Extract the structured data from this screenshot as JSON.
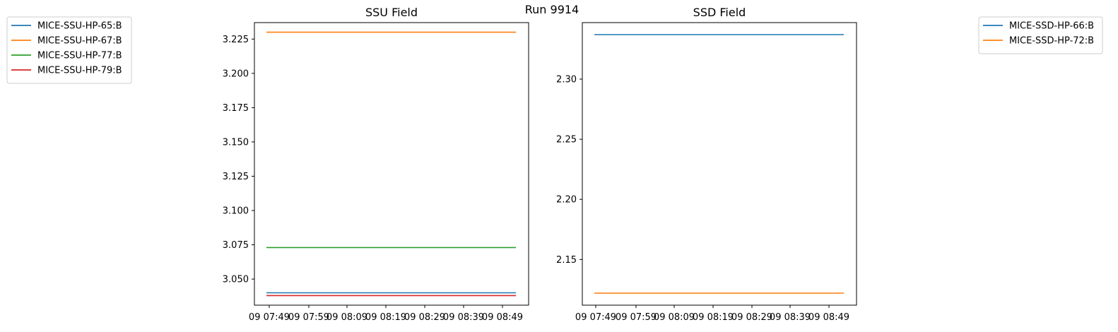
{
  "figure": {
    "suptitle": "Run 9914"
  },
  "chart_data": [
    {
      "type": "line",
      "title": "SSU Field",
      "xlabel": "",
      "ylabel": "",
      "x": [
        "09 07:49",
        "09 07:59",
        "09 08:09",
        "09 08:19",
        "09 08:29",
        "09 08:39",
        "09 08:49"
      ],
      "ylim": [
        3.031,
        3.237
      ],
      "yticks": [
        3.05,
        3.075,
        3.1,
        3.125,
        3.15,
        3.175,
        3.2,
        3.225
      ],
      "ytick_labels": [
        "3.050",
        "3.075",
        "3.100",
        "3.125",
        "3.150",
        "3.175",
        "3.200",
        "3.225"
      ],
      "legend_position": "upper-left, outside plot",
      "series": [
        {
          "name": "MICE-SSU-HP-65:B",
          "color": "#1f77b4",
          "values": [
            3.04,
            3.04,
            3.04,
            3.04,
            3.04,
            3.04,
            3.04
          ]
        },
        {
          "name": "MICE-SSU-HP-67:B",
          "color": "#ff7f0e",
          "values": [
            3.23,
            3.23,
            3.23,
            3.23,
            3.23,
            3.23,
            3.23
          ]
        },
        {
          "name": "MICE-SSU-HP-77:B",
          "color": "#2ca02c",
          "values": [
            3.073,
            3.073,
            3.073,
            3.073,
            3.073,
            3.073,
            3.073
          ]
        },
        {
          "name": "MICE-SSU-HP-79:B",
          "color": "#d62728",
          "values": [
            3.038,
            3.038,
            3.038,
            3.038,
            3.038,
            3.038,
            3.038
          ]
        }
      ]
    },
    {
      "type": "line",
      "title": "SSD Field",
      "xlabel": "",
      "ylabel": "",
      "x": [
        "09 07:49",
        "09 07:59",
        "09 08:09",
        "09 08:19",
        "09 08:29",
        "09 08:39",
        "09 08:49"
      ],
      "ylim": [
        2.112,
        2.347
      ],
      "yticks": [
        2.15,
        2.2,
        2.25,
        2.3
      ],
      "ytick_labels": [
        "2.15",
        "2.20",
        "2.25",
        "2.30"
      ],
      "legend_position": "upper-right, outside plot",
      "series": [
        {
          "name": "MICE-SSD-HP-66:B",
          "color": "#1f77b4",
          "values": [
            2.337,
            2.337,
            2.337,
            2.337,
            2.337,
            2.337,
            2.337
          ]
        },
        {
          "name": "MICE-SSD-HP-72:B",
          "color": "#ff7f0e",
          "values": [
            2.122,
            2.122,
            2.122,
            2.122,
            2.122,
            2.122,
            2.122
          ]
        }
      ]
    }
  ]
}
